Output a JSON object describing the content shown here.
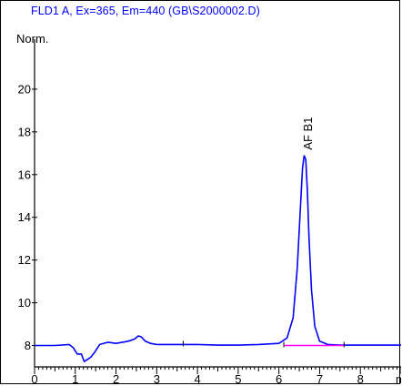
{
  "header": {
    "title": "FLD1 A, Ex=365, Em=440 (GB\\S2000002.D)",
    "title_color": "#0000ff"
  },
  "chart_data": {
    "type": "line",
    "title": "FLD1 A, Ex=365, Em=440 (GB\\S2000002.D)",
    "ylabel": "Norm.",
    "xlabel": "",
    "x_unit_label": "m",
    "xlim": [
      0,
      9
    ],
    "ylim": [
      7,
      22
    ],
    "y_ticks": [
      8,
      10,
      12,
      14,
      16,
      18,
      20
    ],
    "y_tick_labels": [
      "8",
      "10",
      "12",
      "14",
      "16",
      "18",
      "20"
    ],
    "x_ticks": [
      0,
      1,
      2,
      3,
      4,
      5,
      6,
      7,
      8
    ],
    "x_tick_labels": [
      "0",
      "1",
      "2",
      "3",
      "4",
      "5",
      "6",
      "7",
      "8"
    ],
    "grid": false,
    "series": [
      {
        "color": "#0000ff",
        "x": [
          0.0,
          0.5,
          0.85,
          0.95,
          1.05,
          1.15,
          1.22,
          1.3,
          1.38,
          1.48,
          1.6,
          1.8,
          2.0,
          2.3,
          2.45,
          2.55,
          2.62,
          2.72,
          2.85,
          3.0,
          3.5,
          4.0,
          4.5,
          5.0,
          5.5,
          6.0,
          6.2,
          6.35,
          6.45,
          6.52,
          6.58,
          6.62,
          6.66,
          6.7,
          6.74,
          6.8,
          6.88,
          7.0,
          7.2,
          7.5,
          8.0,
          8.5,
          9.0
        ],
        "y": [
          8.0,
          8.0,
          8.05,
          7.9,
          7.6,
          7.6,
          7.25,
          7.35,
          7.45,
          7.7,
          8.05,
          8.15,
          8.1,
          8.2,
          8.3,
          8.45,
          8.4,
          8.2,
          8.1,
          8.05,
          8.05,
          8.05,
          8.02,
          8.02,
          8.05,
          8.1,
          8.35,
          9.3,
          11.6,
          14.2,
          16.3,
          16.9,
          16.7,
          15.2,
          13.0,
          10.6,
          8.9,
          8.2,
          8.05,
          8.02,
          8.02,
          8.02,
          8.02
        ]
      },
      {
        "color": "#ff00ff",
        "x": [
          6.12,
          7.6
        ],
        "y": [
          8.0,
          8.0
        ]
      }
    ],
    "annotations": [
      {
        "text": "AF B1",
        "x": 6.68,
        "y": 16.9
      }
    ]
  }
}
